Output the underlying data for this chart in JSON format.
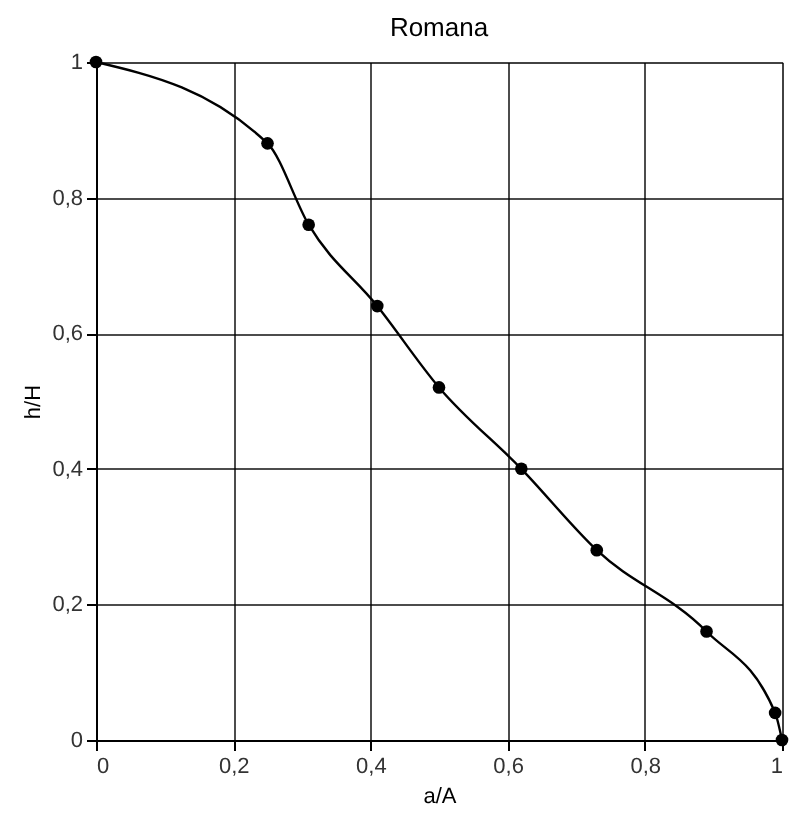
{
  "chart_data": {
    "type": "line",
    "title": "Romana",
    "xlabel": "a/A",
    "ylabel": "h/H",
    "x": [
      0,
      0.25,
      0.31,
      0.41,
      0.5,
      0.62,
      0.73,
      0.89,
      0.99,
      1
    ],
    "series": [
      {
        "color": "#000000",
        "values": [
          1,
          0.88,
          0.76,
          0.64,
          0.52,
          0.4,
          0.28,
          0.16,
          0.04,
          0
        ]
      }
    ],
    "xlim": [
      0,
      1
    ],
    "ylim": [
      0,
      1
    ],
    "xticks": [
      0,
      {
        "value": 0.2,
        "label": "0,2"
      },
      {
        "value": 0.4,
        "label": "0,4"
      },
      {
        "value": 0.6,
        "label": "0,6"
      },
      {
        "value": 0.8,
        "label": "0,8"
      },
      1
    ],
    "yticks": [
      0,
      {
        "value": 0.2,
        "label": "0,2"
      },
      {
        "value": 0.4,
        "label": "0,4"
      },
      {
        "value": 0.6,
        "label": "0,6"
      },
      {
        "value": 0.8,
        "label": "0,8"
      },
      1
    ],
    "grid": true,
    "marker": "circle",
    "line_style": "solid"
  }
}
